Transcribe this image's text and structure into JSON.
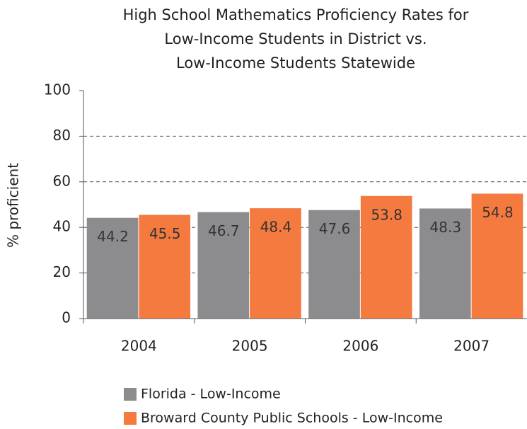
{
  "chart_data": {
    "type": "bar",
    "title": [
      "High School Mathematics Proficiency Rates for",
      "Low-Income Students in District vs.",
      "Low-Income Students Statewide"
    ],
    "y_label": "% proficient",
    "categories": [
      "2004",
      "2005",
      "2006",
      "2007"
    ],
    "series": [
      {
        "name": "Florida - Low-Income",
        "color": "#8c8c8e",
        "values": [
          44.2,
          46.7,
          47.6,
          48.3
        ]
      },
      {
        "name": "Broward County Public Schools - Low-Income",
        "color": "#f47a3f",
        "values": [
          45.5,
          48.4,
          53.8,
          54.8
        ]
      }
    ],
    "ylim": [
      0,
      100
    ],
    "yticks": [
      0,
      20,
      40,
      60,
      80,
      100
    ],
    "grid": true,
    "legend": "bottom"
  }
}
